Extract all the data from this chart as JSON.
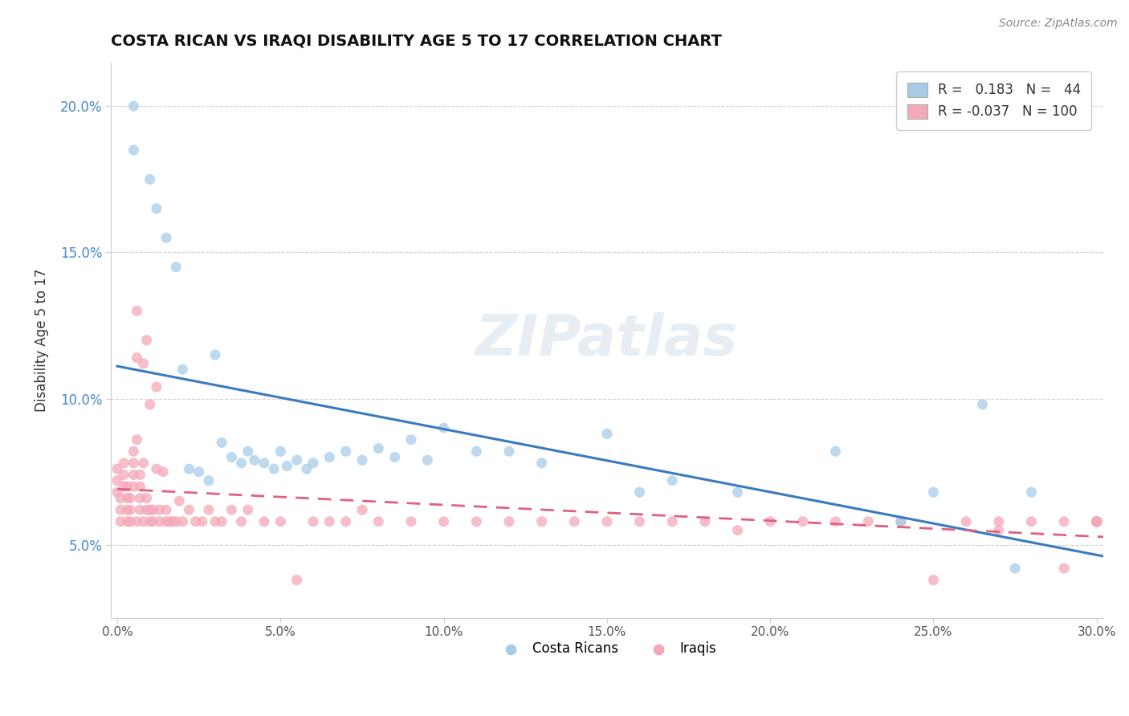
{
  "title": "COSTA RICAN VS IRAQI DISABILITY AGE 5 TO 17 CORRELATION CHART",
  "source_text": "Source: ZipAtlas.com",
  "ylabel": "Disability Age 5 to 17",
  "xlim": [
    -0.002,
    0.302
  ],
  "ylim": [
    0.025,
    0.215
  ],
  "x_ticks": [
    0.0,
    0.05,
    0.1,
    0.15,
    0.2,
    0.25,
    0.3
  ],
  "x_tick_labels": [
    "0.0%",
    "5.0%",
    "10.0%",
    "15.0%",
    "20.0%",
    "25.0%",
    "30.0%"
  ],
  "y_ticks": [
    0.05,
    0.1,
    0.15,
    0.2
  ],
  "y_tick_labels": [
    "5.0%",
    "10.0%",
    "15.0%",
    "20.0%"
  ],
  "costa_rican_color": "#a8cce8",
  "iraqi_color": "#f4a8b8",
  "costa_rican_line_color": "#3a7abf",
  "iraqi_line_color": "#e06080",
  "legend_r_costa": "0.183",
  "legend_n_costa": "44",
  "legend_r_iraqi": "-0.037",
  "legend_n_iraqi": "100",
  "watermark": "ZIPatlas",
  "costa_rican_x": [
    0.005,
    0.005,
    0.01,
    0.012,
    0.015,
    0.018,
    0.02,
    0.022,
    0.025,
    0.028,
    0.03,
    0.032,
    0.035,
    0.038,
    0.04,
    0.042,
    0.045,
    0.048,
    0.05,
    0.052,
    0.055,
    0.058,
    0.06,
    0.065,
    0.07,
    0.075,
    0.08,
    0.085,
    0.09,
    0.095,
    0.1,
    0.11,
    0.12,
    0.13,
    0.15,
    0.16,
    0.17,
    0.19,
    0.22,
    0.24,
    0.25,
    0.265,
    0.275,
    0.28
  ],
  "costa_rican_y": [
    0.2,
    0.185,
    0.175,
    0.165,
    0.155,
    0.145,
    0.11,
    0.076,
    0.075,
    0.072,
    0.115,
    0.085,
    0.08,
    0.078,
    0.082,
    0.079,
    0.078,
    0.076,
    0.082,
    0.077,
    0.079,
    0.076,
    0.078,
    0.08,
    0.082,
    0.079,
    0.083,
    0.08,
    0.086,
    0.079,
    0.09,
    0.082,
    0.082,
    0.078,
    0.088,
    0.068,
    0.072,
    0.068,
    0.082,
    0.058,
    0.068,
    0.098,
    0.042,
    0.068
  ],
  "iraqi_x": [
    0.0,
    0.0,
    0.0,
    0.001,
    0.001,
    0.001,
    0.002,
    0.002,
    0.002,
    0.003,
    0.003,
    0.003,
    0.003,
    0.004,
    0.004,
    0.004,
    0.005,
    0.005,
    0.005,
    0.005,
    0.006,
    0.006,
    0.006,
    0.006,
    0.007,
    0.007,
    0.007,
    0.007,
    0.008,
    0.008,
    0.008,
    0.009,
    0.009,
    0.009,
    0.01,
    0.01,
    0.01,
    0.011,
    0.011,
    0.012,
    0.012,
    0.013,
    0.013,
    0.014,
    0.015,
    0.015,
    0.016,
    0.017,
    0.018,
    0.019,
    0.02,
    0.022,
    0.024,
    0.026,
    0.028,
    0.03,
    0.032,
    0.035,
    0.038,
    0.04,
    0.045,
    0.05,
    0.055,
    0.06,
    0.065,
    0.07,
    0.075,
    0.08,
    0.09,
    0.1,
    0.11,
    0.12,
    0.13,
    0.14,
    0.15,
    0.16,
    0.17,
    0.18,
    0.19,
    0.2,
    0.21,
    0.22,
    0.23,
    0.24,
    0.25,
    0.26,
    0.27,
    0.27,
    0.28,
    0.29,
    0.29,
    0.3,
    0.3,
    0.3,
    0.3,
    0.3,
    0.3,
    0.3,
    0.3,
    0.3
  ],
  "iraqi_y": [
    0.068,
    0.072,
    0.076,
    0.058,
    0.062,
    0.066,
    0.07,
    0.074,
    0.078,
    0.058,
    0.062,
    0.066,
    0.07,
    0.058,
    0.062,
    0.066,
    0.07,
    0.074,
    0.078,
    0.082,
    0.086,
    0.114,
    0.13,
    0.058,
    0.062,
    0.066,
    0.07,
    0.074,
    0.078,
    0.112,
    0.058,
    0.062,
    0.066,
    0.12,
    0.058,
    0.062,
    0.098,
    0.058,
    0.062,
    0.076,
    0.104,
    0.058,
    0.062,
    0.075,
    0.058,
    0.062,
    0.058,
    0.058,
    0.058,
    0.065,
    0.058,
    0.062,
    0.058,
    0.058,
    0.062,
    0.058,
    0.058,
    0.062,
    0.058,
    0.062,
    0.058,
    0.058,
    0.038,
    0.058,
    0.058,
    0.058,
    0.062,
    0.058,
    0.058,
    0.058,
    0.058,
    0.058,
    0.058,
    0.058,
    0.058,
    0.058,
    0.058,
    0.058,
    0.055,
    0.058,
    0.058,
    0.058,
    0.058,
    0.058,
    0.038,
    0.058,
    0.058,
    0.055,
    0.058,
    0.058,
    0.042,
    0.058,
    0.058,
    0.058,
    0.058,
    0.058,
    0.058,
    0.058,
    0.058,
    0.058
  ]
}
